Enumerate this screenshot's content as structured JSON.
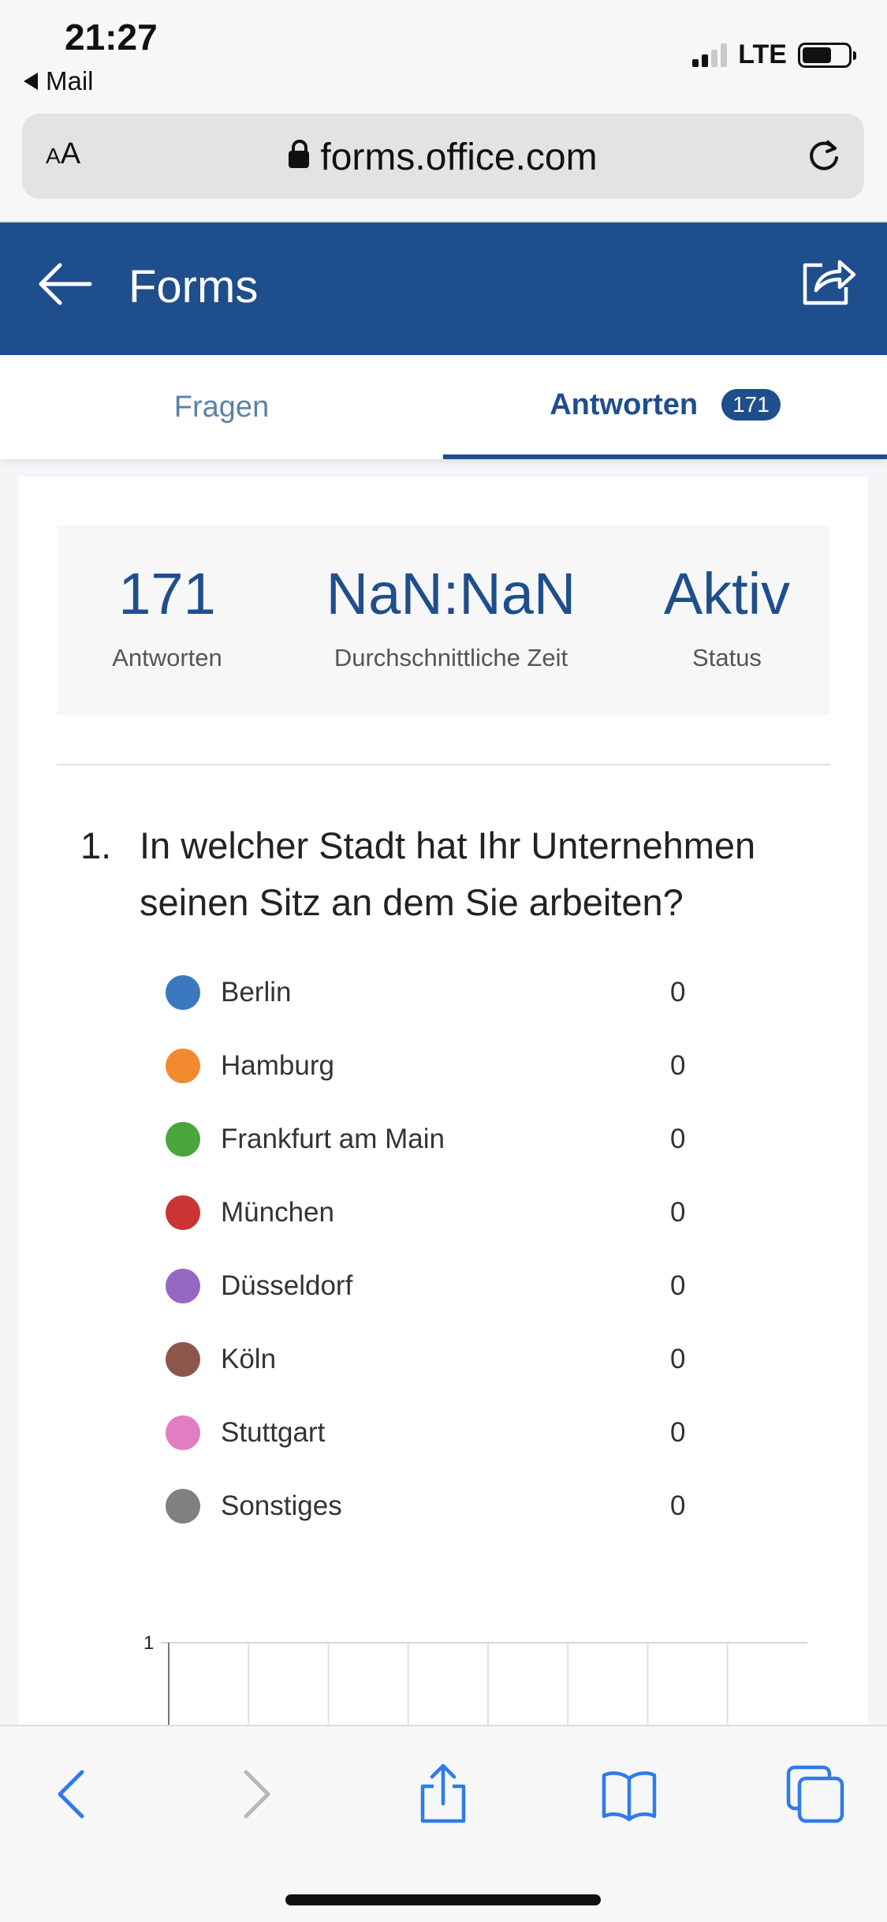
{
  "status_bar": {
    "time": "21:27",
    "back_app": "Mail",
    "network": "LTE"
  },
  "browser": {
    "text_size_label_small": "A",
    "text_size_label_large": "A",
    "url": "forms.office.com"
  },
  "header": {
    "title": "Forms"
  },
  "tabs": [
    {
      "label": "Fragen",
      "active": false
    },
    {
      "label": "Antworten",
      "active": true,
      "badge": "171"
    }
  ],
  "summary": {
    "responses_value": "171",
    "responses_label": "Antworten",
    "avg_time_value": "NaN:NaN",
    "avg_time_label": "Durchschnittliche Zeit",
    "status_value": "Aktiv",
    "status_label": "Status"
  },
  "question": {
    "number": "1.",
    "text": "In welcher Stadt hat Ihr Unternehmen seinen Sitz an dem Sie arbeiten?",
    "options": [
      {
        "label": "Berlin",
        "count": "0",
        "color": "#3a78bf"
      },
      {
        "label": "Hamburg",
        "count": "0",
        "color": "#f28a30"
      },
      {
        "label": "Frankfurt am Main",
        "count": "0",
        "color": "#4aa53c"
      },
      {
        "label": "München",
        "count": "0",
        "color": "#cc3333"
      },
      {
        "label": "Düsseldorf",
        "count": "0",
        "color": "#9467c0"
      },
      {
        "label": "Köln",
        "count": "0",
        "color": "#8c564b"
      },
      {
        "label": "Stuttgart",
        "count": "0",
        "color": "#e17ec2"
      },
      {
        "label": "Sonstiges",
        "count": "0",
        "color": "#808080"
      }
    ]
  },
  "chart_data": {
    "type": "bar",
    "categories": [
      "Berlin",
      "Hamburg",
      "Frankfurt am Main",
      "München",
      "Düsseldorf",
      "Köln",
      "Stuttgart",
      "Sonstiges"
    ],
    "values": [
      0,
      0,
      0,
      0,
      0,
      0,
      0,
      0
    ],
    "ylim": [
      0,
      1
    ],
    "y_ticks": [
      "1"
    ],
    "grid": true
  }
}
